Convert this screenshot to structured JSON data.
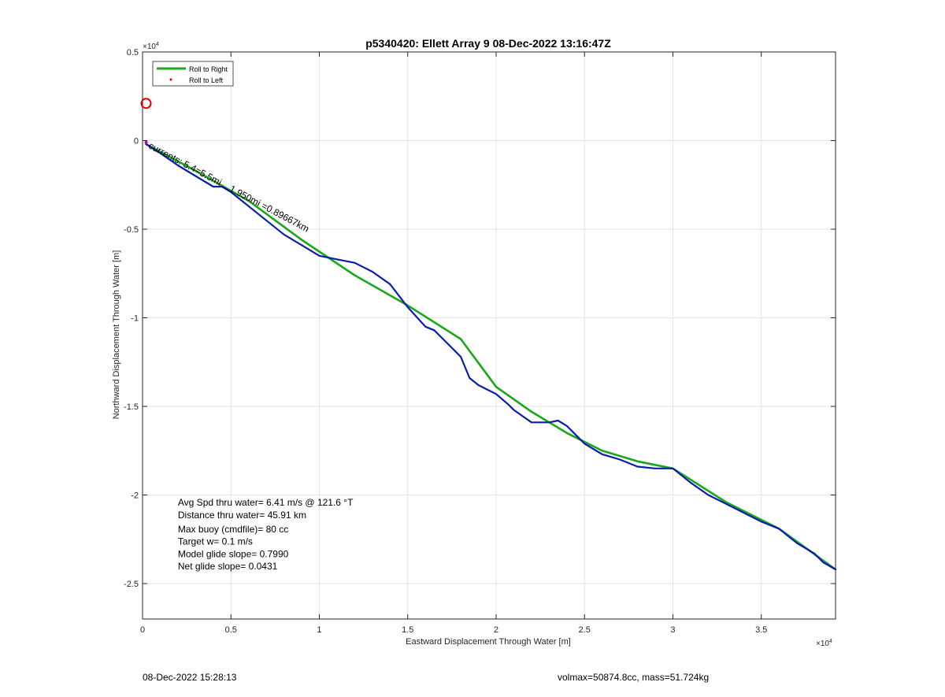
{
  "chart_data": {
    "type": "line",
    "title": "p5340420: Ellett Array 9 08-Dec-2022 13:16:47Z",
    "xlabel": "Eastward Displacement Through Water [m]",
    "ylabel": "Northward Displacement Through Water [m]",
    "x_exponent": "×10",
    "x_exponent_power": "4",
    "y_exponent": "×10",
    "y_exponent_power": "4",
    "xlim": [
      0,
      3.92
    ],
    "ylim": [
      -2.7,
      0.5
    ],
    "x_ticks": [
      0,
      0.5,
      1,
      1.5,
      2,
      2.5,
      3,
      3.5
    ],
    "x_tick_labels": [
      "0",
      "0.5",
      "1",
      "1.5",
      "2",
      "2.5",
      "3",
      "3.5"
    ],
    "y_ticks": [
      0.5,
      0,
      -0.5,
      -1,
      -1.5,
      -2,
      -2.5
    ],
    "y_tick_labels": [
      "0.5",
      "0",
      "-0.5",
      "-1",
      "-1.5",
      "-2",
      "-2.5"
    ],
    "grid": true,
    "legend_position": "top-left",
    "legend": [
      {
        "label": "Roll to Right",
        "color": "#1aa81a",
        "marker": "line"
      },
      {
        "label": "Roll to Left",
        "color": "#e00000",
        "marker": "dot"
      }
    ],
    "series": [
      {
        "name": "Roll to Right",
        "color": "#1aa81a",
        "x": [
          0.02,
          0.3,
          0.6,
          0.9,
          1.2,
          1.5,
          1.8,
          2.0,
          2.2,
          2.4,
          2.6,
          2.8,
          3.0,
          3.3,
          3.6,
          3.92
        ],
        "y": [
          -0.02,
          -0.17,
          -0.34,
          -0.56,
          -0.76,
          -0.93,
          -1.12,
          -1.39,
          -1.53,
          -1.65,
          -1.75,
          -1.81,
          -1.85,
          -2.04,
          -2.19,
          -2.42
        ]
      },
      {
        "color": "#0a1ea8",
        "x": [
          0.02,
          0.1,
          0.2,
          0.3,
          0.4,
          0.45,
          0.5,
          0.6,
          0.7,
          0.8,
          0.9,
          1.0,
          1.1,
          1.2,
          1.3,
          1.4,
          1.5,
          1.6,
          1.65,
          1.7,
          1.8,
          1.85,
          1.9,
          2.0,
          2.07,
          2.1,
          2.2,
          2.3,
          2.35,
          2.4,
          2.5,
          2.6,
          2.7,
          2.8,
          2.9,
          3.0,
          3.1,
          3.2,
          3.3,
          3.4,
          3.5,
          3.6,
          3.7,
          3.8,
          3.85,
          3.92
        ],
        "y": [
          -0.02,
          -0.07,
          -0.14,
          -0.2,
          -0.26,
          -0.26,
          -0.29,
          -0.37,
          -0.45,
          -0.53,
          -0.59,
          -0.65,
          -0.67,
          -0.69,
          -0.74,
          -0.81,
          -0.94,
          -1.05,
          -1.07,
          -1.12,
          -1.22,
          -1.34,
          -1.38,
          -1.43,
          -1.49,
          -1.52,
          -1.59,
          -1.59,
          -1.58,
          -1.61,
          -1.71,
          -1.77,
          -1.8,
          -1.84,
          -1.85,
          -1.85,
          -1.93,
          -2.0,
          -2.05,
          -2.1,
          -2.15,
          -2.19,
          -2.27,
          -2.33,
          -2.38,
          -2.42
        ]
      }
    ],
    "markers": [
      {
        "type": "circle",
        "x": 0.02,
        "y": 0.21,
        "color": "#e00000"
      },
      {
        "type": "dot",
        "x": 0.02,
        "y": -0.01,
        "color": "#c000c0"
      }
    ],
    "annotations": [
      {
        "text": "Avg Spd thru water=  6.41 m/s @ 121.6 °T",
        "x": 0.2,
        "y": -2.06
      },
      {
        "text": "Distance thru water= 45.91 km",
        "x": 0.2,
        "y": -2.13
      },
      {
        "text": "Max buoy (cmdfile)= 80 cc",
        "x": 0.2,
        "y": -2.21
      },
      {
        "text": "Target w= 0.1 m/s",
        "x": 0.2,
        "y": -2.28
      },
      {
        "text": "Model glide slope= 0.7990",
        "x": 0.2,
        "y": -2.35
      },
      {
        "text": "Net glide slope= 0.0431",
        "x": 0.2,
        "y": -2.42
      }
    ],
    "rotated_label": {
      "text": "currents: 5.4=5.5mi ...1.950mi =0.89667km",
      "x": 0.03,
      "y": -0.04,
      "angle": 28
    }
  },
  "footer": {
    "left": "08-Dec-2022 15:28:13",
    "right": "volmax=50874.8cc, mass=51.724kg"
  }
}
